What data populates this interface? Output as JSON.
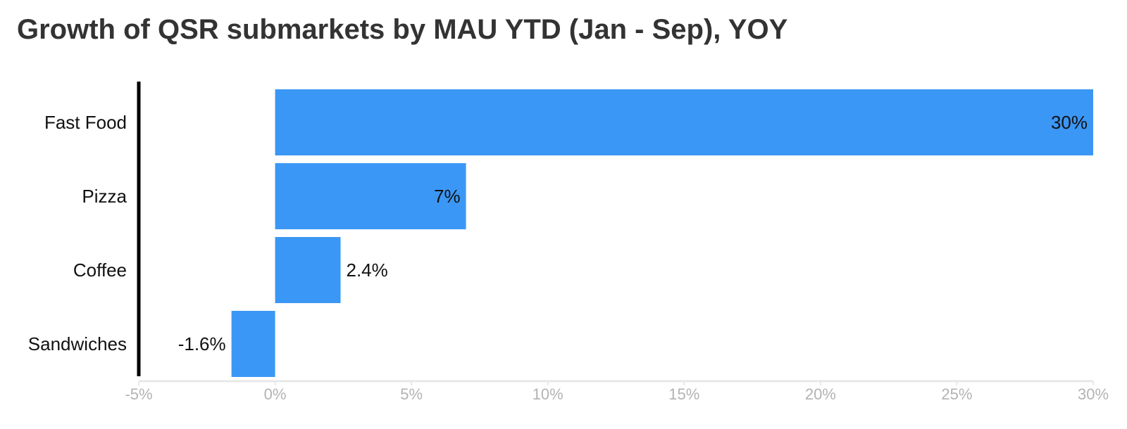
{
  "chart_data": {
    "type": "bar",
    "orientation": "horizontal",
    "title": "Growth of QSR submarkets by MAU YTD (Jan - Sep), YOY",
    "xlabel": "",
    "ylabel": "",
    "categories": [
      "Fast Food",
      "Pizza",
      "Coffee",
      "Sandwiches"
    ],
    "values": [
      30,
      7,
      2.4,
      -1.6
    ],
    "value_labels": [
      "30%",
      "7%",
      "2.4%",
      "-1.6%"
    ],
    "xlim": [
      -5,
      30
    ],
    "x_ticks": [
      -5,
      0,
      5,
      10,
      15,
      20,
      25,
      30
    ],
    "x_tick_labels": [
      "-5%",
      "0%",
      "5%",
      "10%",
      "15%",
      "20%",
      "25%",
      "30%"
    ],
    "grid": false,
    "legend": "none",
    "bar_color": "#3b97f5",
    "axis_color": "#000000",
    "baseline_color": "#e8e8e8",
    "tick_color": "#b3b3b3"
  }
}
